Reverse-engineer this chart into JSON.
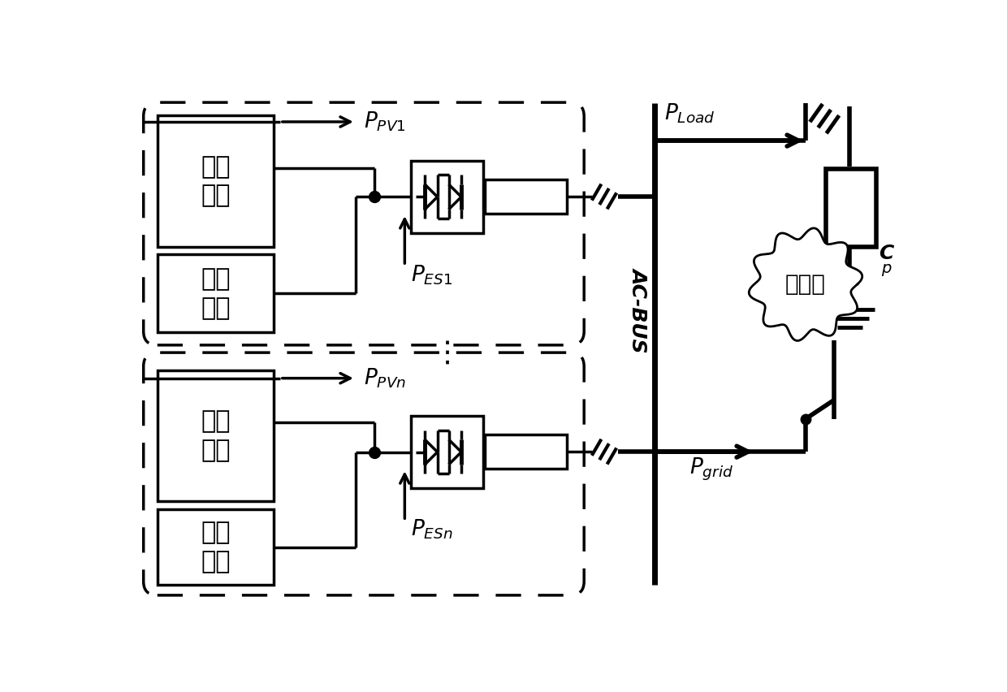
{
  "bg": "#ffffff",
  "black": "#000000",
  "label_guang": "光伏\n单元",
  "label_chu": "储能\n单元",
  "label_PPV1": "$P_{PV1}$",
  "label_PES1": "$P_{ES1}$",
  "label_PPVn": "$P_{PVn}$",
  "label_PESn": "$P_{ESn}$",
  "label_PLoad": "$P_{Load}$",
  "label_Pgrid": "$P_{grid}$",
  "label_ACBUS": "AC-BUS",
  "label_zhudianwang": "主电网",
  "fig_w": 12.4,
  "fig_h": 8.52,
  "dpi": 100
}
